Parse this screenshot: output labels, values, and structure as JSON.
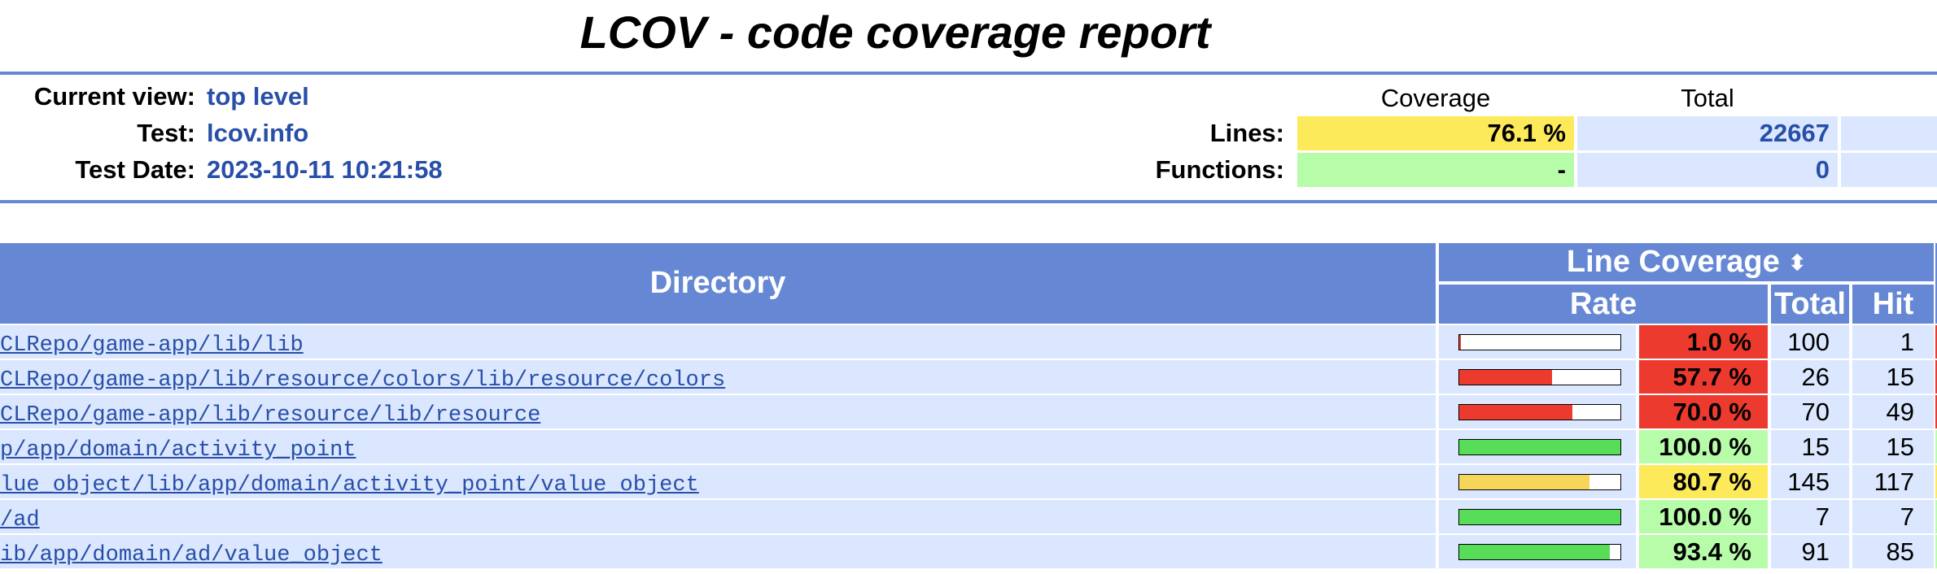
{
  "title": "LCOV - code coverage report",
  "header": {
    "current_view_label": "Current view:",
    "current_view_value": "top level",
    "test_label": "Test:",
    "test_value": "lcov.info",
    "test_date_label": "Test Date:",
    "test_date_value": "2023-10-11 10:21:58"
  },
  "summary": {
    "coverage_head": "Coverage",
    "total_head": "Total",
    "lines_label": "Lines:",
    "lines_coverage": "76.1 %",
    "lines_total": "22667",
    "functions_label": "Functions:",
    "functions_coverage": "-",
    "functions_total": "0"
  },
  "colors": {
    "accent": "#6688d4",
    "row_bg": "#dae7fe",
    "link": "#284fa8",
    "low": "#ec3a2e",
    "medium": "#fcea5a",
    "high": "#b6fca9",
    "bar_high": "#58dd58",
    "bar_medium": "#f5d55a"
  },
  "table": {
    "directory_head": "Directory",
    "line_coverage_head": "Line Coverage",
    "sort_icon": "sort-icon",
    "rate_head": "Rate",
    "total_head": "Total",
    "hit_head": "Hit",
    "rows": [
      {
        "dir": "CLRepo/game-app/lib/lib",
        "rate": "1.0 %",
        "fraction": 0.01,
        "level": "low",
        "total": "100",
        "hit": "1"
      },
      {
        "dir": "CLRepo/game-app/lib/resource/colors/lib/resource/colors",
        "rate": "57.7 %",
        "fraction": 0.577,
        "level": "low",
        "total": "26",
        "hit": "15"
      },
      {
        "dir": "CLRepo/game-app/lib/resource/lib/resource",
        "rate": "70.0 %",
        "fraction": 0.7,
        "level": "low",
        "total": "70",
        "hit": "49"
      },
      {
        "dir": "p/app/domain/activity_point",
        "rate": "100.0 %",
        "fraction": 1.0,
        "level": "high",
        "total": "15",
        "hit": "15"
      },
      {
        "dir": "lue_object/lib/app/domain/activity_point/value_object",
        "rate": "80.7 %",
        "fraction": 0.807,
        "level": "medium",
        "total": "145",
        "hit": "117"
      },
      {
        "dir": "/ad",
        "rate": "100.0 %",
        "fraction": 1.0,
        "level": "high",
        "total": "7",
        "hit": "7"
      },
      {
        "dir": "ib/app/domain/ad/value_object",
        "rate": "93.4 %",
        "fraction": 0.934,
        "level": "high",
        "total": "91",
        "hit": "85"
      }
    ]
  }
}
